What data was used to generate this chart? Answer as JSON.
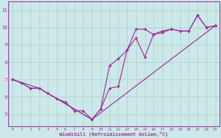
{
  "xlabel": "Windchill (Refroidissement éolien,°C)",
  "xlim": [
    -0.5,
    23.5
  ],
  "ylim": [
    4.3,
    11.5
  ],
  "yticks": [
    5,
    6,
    7,
    8,
    9,
    10,
    11
  ],
  "xticks": [
    0,
    1,
    2,
    3,
    4,
    5,
    6,
    7,
    8,
    9,
    10,
    11,
    12,
    13,
    14,
    15,
    16,
    17,
    18,
    19,
    20,
    21,
    22,
    23
  ],
  "bg_color": "#cce8e8",
  "line_color": "#993399",
  "grid_color": "#aacccc",
  "line1_x": [
    0,
    1,
    2,
    3,
    4,
    5,
    6,
    7,
    8,
    9,
    10,
    11,
    12,
    13,
    14,
    15,
    16,
    17,
    18,
    19,
    20,
    21,
    22,
    23
  ],
  "line1_y": [
    7.0,
    6.8,
    6.5,
    6.5,
    6.2,
    5.9,
    5.7,
    5.2,
    5.2,
    4.7,
    5.3,
    6.5,
    6.6,
    8.7,
    9.9,
    9.9,
    9.6,
    9.8,
    9.9,
    9.8,
    9.8,
    10.7,
    10.0,
    10.1
  ],
  "line2_x": [
    0,
    1,
    2,
    3,
    9,
    10,
    11,
    12,
    13,
    14,
    15,
    16,
    17,
    18,
    19,
    20,
    21,
    22,
    23
  ],
  "line2_y": [
    7.0,
    6.8,
    6.5,
    6.5,
    4.7,
    5.3,
    7.8,
    8.2,
    8.7,
    9.4,
    8.3,
    9.6,
    9.7,
    9.9,
    9.8,
    9.8,
    10.7,
    10.0,
    10.1
  ],
  "line3_x": [
    0,
    3,
    9,
    23
  ],
  "line3_y": [
    7.0,
    6.5,
    4.7,
    10.1
  ]
}
